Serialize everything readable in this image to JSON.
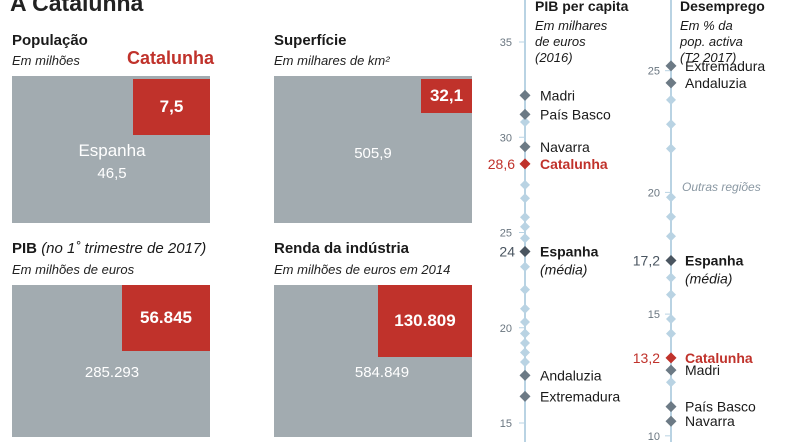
{
  "title": "A Catalunha",
  "colors": {
    "catalunha": "#c0322b",
    "espanha_marker": "#4a5560",
    "region_marker": "#6c7a85",
    "other_marker": "#b9d3e3",
    "axis_line": "#b9d3e3",
    "box": "#a2abb0"
  },
  "comparisons": {
    "populacao": {
      "title": "População",
      "subtitle": "Em milhões",
      "cat_label": "Catalunha",
      "catalunha": 7.5,
      "catalunha_label": "7,5",
      "espanha_name": "Espanha",
      "espanha": 46.5,
      "espanha_label": "46,5"
    },
    "superficie": {
      "title": "Superfície",
      "subtitle": "Em milhares de km²",
      "catalunha": 32.1,
      "catalunha_label": "32,1",
      "espanha": 505.9,
      "espanha_label": "505,9"
    },
    "pib": {
      "title": "PIB",
      "title_note": "(no 1˚ trimestre de 2017)",
      "subtitle": "Em milhões de euros",
      "catalunha": 56845,
      "catalunha_label": "56.845",
      "espanha": 285293,
      "espanha_label": "285.293"
    },
    "renda": {
      "title": "Renda da indústria",
      "subtitle": "Em milhões de euros em 2014",
      "catalunha": 130809,
      "catalunha_label": "130.809",
      "espanha": 584849,
      "espanha_label": "584.849"
    }
  },
  "chart_data": [
    {
      "type": "scatter",
      "title": "PIB per capita",
      "subtitle_lines": [
        "Em milhares",
        "de euros",
        "(2016)"
      ],
      "ylim": [
        15,
        35
      ],
      "ticks": [
        15,
        20,
        25,
        30,
        35
      ],
      "points": [
        {
          "value": 32.2,
          "label": "Madri",
          "kind": "region"
        },
        {
          "value": 31.2,
          "label": "País Basco",
          "kind": "region"
        },
        {
          "value": 29.5,
          "label": "Navarra",
          "kind": "region"
        },
        {
          "value": 28.6,
          "label": "Catalunha",
          "kind": "catalunha",
          "value_label": "28,6"
        },
        {
          "value": 24.0,
          "label": "Espanha",
          "sublabel": "(média)",
          "kind": "espanha",
          "value_label": "24"
        },
        {
          "value": 17.5,
          "label": "Andaluzia",
          "kind": "region"
        },
        {
          "value": 16.4,
          "label": "Extremadura",
          "kind": "region"
        },
        {
          "value": 30.8,
          "kind": "other"
        },
        {
          "value": 27.5,
          "kind": "other"
        },
        {
          "value": 26.8,
          "kind": "other"
        },
        {
          "value": 25.8,
          "kind": "other"
        },
        {
          "value": 25.3,
          "kind": "other"
        },
        {
          "value": 24.7,
          "kind": "other"
        },
        {
          "value": 23.2,
          "kind": "other"
        },
        {
          "value": 22.0,
          "kind": "other"
        },
        {
          "value": 21.0,
          "kind": "other"
        },
        {
          "value": 20.3,
          "kind": "other"
        },
        {
          "value": 19.7,
          "kind": "other"
        },
        {
          "value": 19.2,
          "kind": "other"
        },
        {
          "value": 18.7,
          "kind": "other"
        },
        {
          "value": 18.2,
          "kind": "other"
        }
      ]
    },
    {
      "type": "scatter",
      "title": "Desemprego",
      "subtitle_lines": [
        "Em % da",
        "pop. activa",
        "(T2 2017)"
      ],
      "ylim": [
        9.5,
        27
      ],
      "ticks": [
        10,
        15,
        20,
        25
      ],
      "annotation": "Outras regiões",
      "points": [
        {
          "value": 25.2,
          "label": "Extremadura",
          "kind": "region"
        },
        {
          "value": 24.5,
          "label": "Andaluzia",
          "kind": "region"
        },
        {
          "value": 17.2,
          "label": "Espanha",
          "sublabel": "(média)",
          "kind": "espanha",
          "value_label": "17,2"
        },
        {
          "value": 13.2,
          "label": "Catalunha",
          "kind": "catalunha",
          "value_label": "13,2"
        },
        {
          "value": 12.7,
          "label": "Madri",
          "kind": "region"
        },
        {
          "value": 11.2,
          "label": "País Basco",
          "kind": "region"
        },
        {
          "value": 10.6,
          "label": "Navarra",
          "kind": "region"
        },
        {
          "value": 23.8,
          "kind": "other"
        },
        {
          "value": 22.8,
          "kind": "other"
        },
        {
          "value": 21.8,
          "kind": "other"
        },
        {
          "value": 19.8,
          "kind": "other"
        },
        {
          "value": 19.0,
          "kind": "other"
        },
        {
          "value": 18.2,
          "kind": "other"
        },
        {
          "value": 16.5,
          "kind": "other"
        },
        {
          "value": 15.8,
          "kind": "other"
        },
        {
          "value": 14.8,
          "kind": "other"
        },
        {
          "value": 14.2,
          "kind": "other"
        },
        {
          "value": 12.2,
          "kind": "other"
        }
      ]
    }
  ]
}
